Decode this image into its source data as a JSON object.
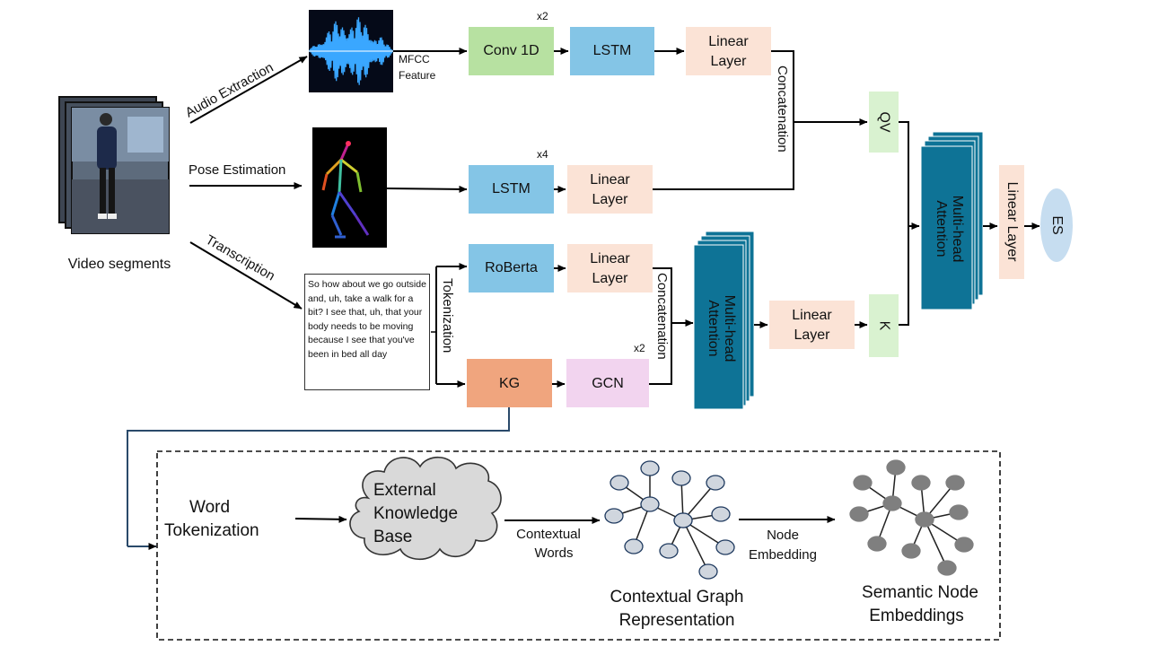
{
  "video_label": "Video segments",
  "branches": {
    "audio_extraction": "Audio Extraction",
    "pose_estimation": "Pose Estimation",
    "transcription": "Transcription"
  },
  "mfcc": [
    "MFCC",
    "Feature"
  ],
  "audio_path": {
    "conv": "Conv 1D",
    "conv_repeat": "x2",
    "lstm": "LSTM",
    "linear": [
      "Linear",
      "Layer"
    ]
  },
  "pose_path": {
    "lstm": "LSTM",
    "lstm_repeat": "x4",
    "linear": [
      "Linear",
      "Layer"
    ]
  },
  "concat_top": "Concatenation",
  "qv": "QV",
  "k": "K",
  "text_path": {
    "transcript": "So how about we go outside and, uh, take a walk for a bit? I see that, uh, that your body needs to be moving because I see that you've been in bed all day",
    "tokenization": "Tokenization",
    "roberta": "RoBerta",
    "linear": [
      "Linear",
      "Layer"
    ],
    "kg": "KG",
    "gcn": "GCN",
    "gcn_repeat": "x2",
    "concat": "Concatenation",
    "attention": [
      "Multi-head",
      "Attention"
    ],
    "post_linear": [
      "Linear",
      "Layer"
    ]
  },
  "fusion": {
    "attention": [
      "Multi-head",
      "Attention"
    ],
    "linear": "Linear Layer",
    "output": "ES"
  },
  "kg_detail": {
    "word_tokenization": [
      "Word",
      "Tokenization"
    ],
    "knowledge_base": [
      "External",
      "Knowledge",
      "Base"
    ],
    "contextual_words": [
      "Contextual",
      "Words"
    ],
    "graph_label": [
      "Contextual Graph",
      "Representation"
    ],
    "node_embedding": [
      "Node",
      "Embedding"
    ],
    "embeddings_label": [
      "Semantic Node",
      "Embeddings"
    ]
  },
  "colors": {
    "conv": "#b7e1a1",
    "lstm": "#84c5e6",
    "linear": "#fbe3d6",
    "qv_k": "#d9f2d0",
    "kg": "#f0a57e",
    "gcn": "#f2d4ef",
    "attention": "#0e7396",
    "node_light": "#d0d6de",
    "node_dark": "#7f7f7f",
    "es": "#c6ddf0"
  }
}
